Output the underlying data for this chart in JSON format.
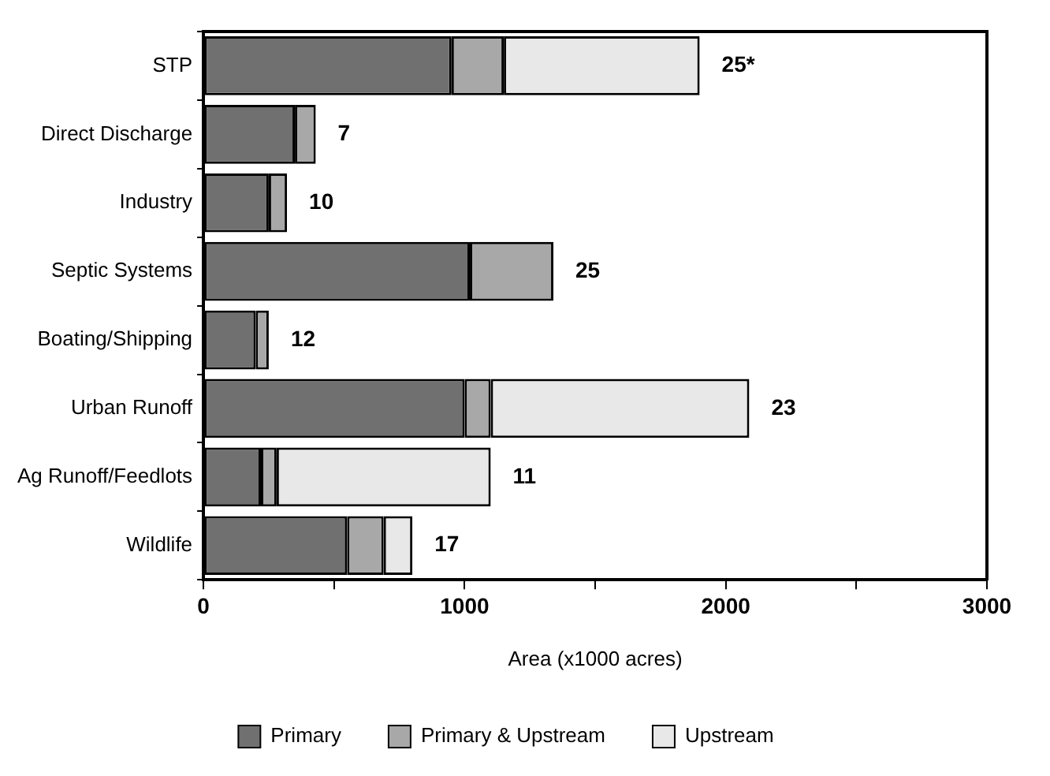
{
  "chart_data": {
    "type": "bar",
    "orientation": "horizontal",
    "stacked": true,
    "xlabel": "Area (x1000 acres)",
    "categories": [
      "STP",
      "Direct Discharge",
      "Industry",
      "Septic Systems",
      "Boating/Shipping",
      "Urban Runoff",
      "Ag Runoff/Feedlots",
      "Wildlife"
    ],
    "series": [
      {
        "name": "Primary",
        "color": "#707070",
        "values": [
          950,
          350,
          250,
          1020,
          200,
          1000,
          220,
          550
        ]
      },
      {
        "name": "Primary & Upstream",
        "color": "#a8a8a8",
        "values": [
          200,
          80,
          70,
          320,
          50,
          100,
          60,
          140
        ]
      },
      {
        "name": "Upstream",
        "color": "#e8e8e8",
        "values": [
          750,
          null,
          null,
          null,
          null,
          990,
          820,
          110
        ]
      }
    ],
    "xlim": [
      0,
      3000
    ],
    "xticks": [
      0,
      {
        "value": 500,
        "label": null
      },
      1000,
      {
        "value": 1500,
        "label": null
      },
      2000,
      {
        "value": 2500,
        "label": null
      },
      3000
    ],
    "grid": false,
    "legend": "bottom",
    "annotations": [
      {
        "text": "25*",
        "x": 1900,
        "y": "STP"
      },
      {
        "text": "7",
        "x": 430,
        "y": "Direct Discharge"
      },
      {
        "text": "10",
        "x": 320,
        "y": "Industry"
      },
      {
        "text": "25",
        "x": 1340,
        "y": "Septic Systems"
      },
      {
        "text": "12",
        "x": 250,
        "y": "Boating/Shipping"
      },
      {
        "text": "23",
        "x": 2090,
        "y": "Urban Runoff"
      },
      {
        "text": "11",
        "x": 1100,
        "y": "Ag Runoff/Feedlots"
      },
      {
        "text": "17",
        "x": 800,
        "y": "Wildlife"
      }
    ]
  }
}
